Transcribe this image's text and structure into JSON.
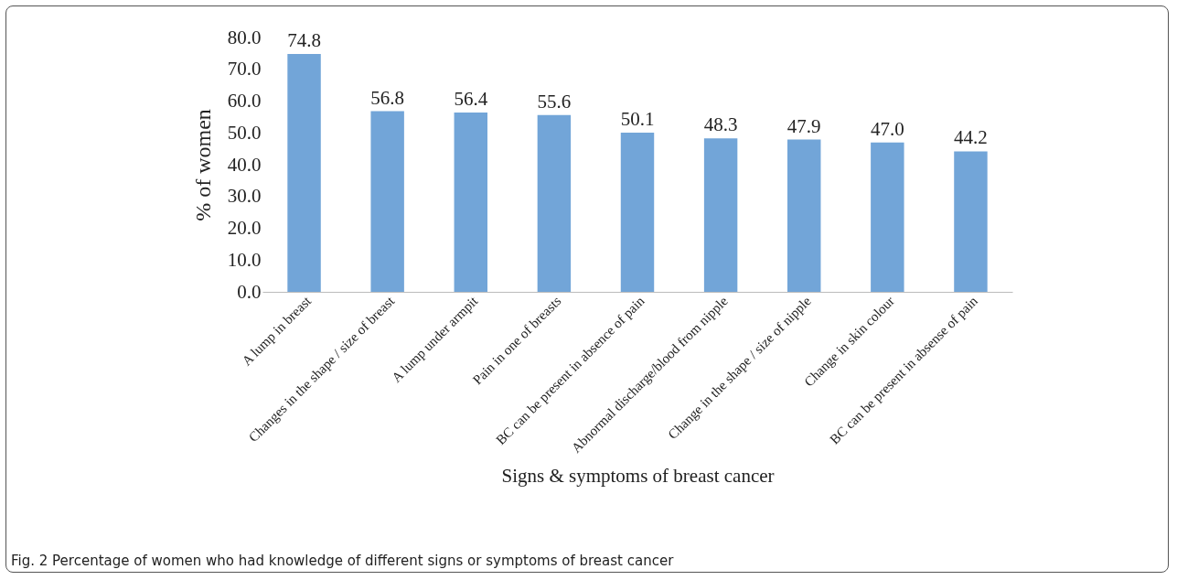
{
  "chart_data": {
    "type": "bar",
    "xlabel": "Signs & symptoms of breast cancer",
    "ylabel": "% of women",
    "categories": [
      "A lump in breast",
      "Changes in the shape / size of breast",
      "A lump under armpit",
      "Pain in one of breasts",
      "BC can be present in absence of pain",
      "Abnormal discharge/blood from nipple",
      "Change in the shape / size of nipple",
      "Change in skin colour",
      "BC can be present in absense of pain"
    ],
    "values": [
      74.8,
      56.8,
      56.4,
      55.6,
      50.1,
      48.3,
      47.9,
      47.0,
      44.2
    ],
    "value_labels": [
      "74.8",
      "56.8",
      "56.4",
      "55.6",
      "50.1",
      "48.3",
      "47.9",
      "47.0",
      "44.2"
    ],
    "color": "#72a5d8",
    "ylim": [
      0,
      80
    ],
    "yticks": [
      {
        "value": 0,
        "label": "0.0"
      },
      {
        "value": 10,
        "label": "10.0"
      },
      {
        "value": 20,
        "label": "20.0"
      },
      {
        "value": 30,
        "label": "30.0"
      },
      {
        "value": 40,
        "label": "40.0"
      },
      {
        "value": 50,
        "label": "50.0"
      },
      {
        "value": 60,
        "label": "60.0"
      },
      {
        "value": 70,
        "label": "70.0"
      },
      {
        "value": 80,
        "label": "80.0"
      }
    ],
    "grid": false,
    "annotations": [
      "Fig. 2 Percentage of women who had knowledge of different signs or symptoms of breast cancer"
    ]
  }
}
